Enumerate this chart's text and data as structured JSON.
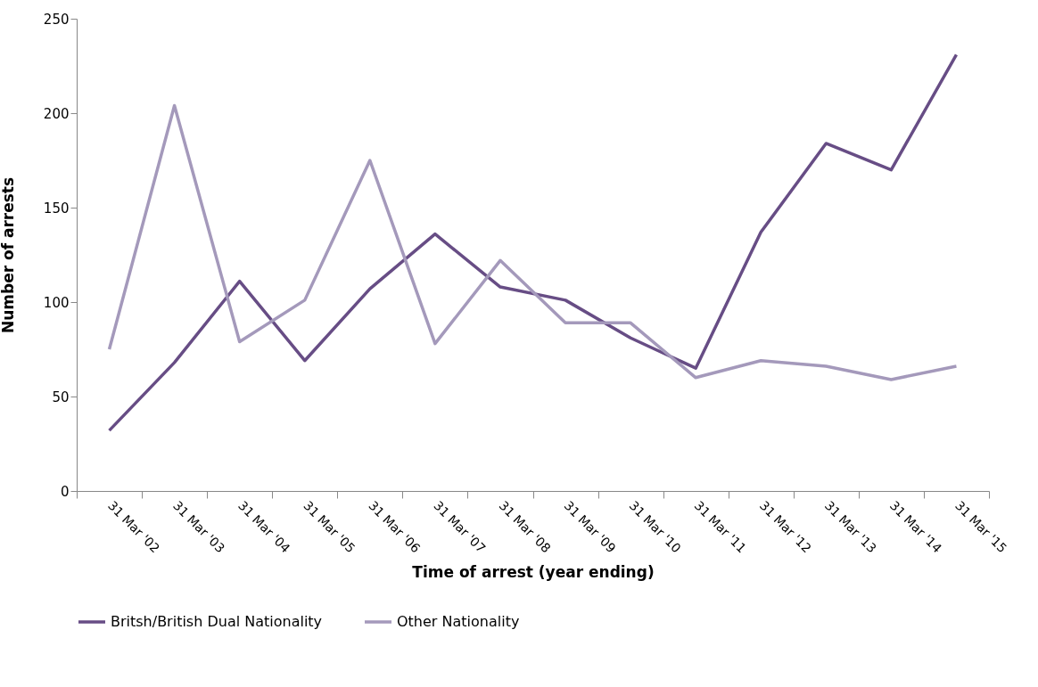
{
  "chart_data": {
    "type": "line",
    "xlabel": "Time of arrest (year ending)",
    "ylabel": "Number of arrests",
    "categories": [
      "31 Mar '02",
      "31 Mar '03",
      "31 Mar '04",
      "31 Mar '05",
      "31 Mar '06",
      "31 Mar '07",
      "31 Mar '08",
      "31 Mar '09",
      "31 Mar '10",
      "31 Mar '11",
      "31 Mar '12",
      "31 Mar '13",
      "31 Mar '14",
      "31 Mar '15"
    ],
    "series": [
      {
        "name": "Britsh/British Dual Nationality",
        "color": "#674d85",
        "values": [
          32,
          68,
          111,
          69,
          107,
          136,
          108,
          101,
          81,
          65,
          137,
          184,
          170,
          231
        ]
      },
      {
        "name": "Other Nationality",
        "color": "#a499bb",
        "values": [
          75,
          204,
          79,
          101,
          175,
          78,
          122,
          89,
          89,
          60,
          69,
          66,
          59,
          66
        ]
      }
    ],
    "ylim": [
      0,
      250
    ],
    "yticks": [
      0,
      50,
      100,
      150,
      200,
      250
    ],
    "grid": false,
    "legend": "bottom",
    "marker": "none",
    "line_style": "solid"
  }
}
